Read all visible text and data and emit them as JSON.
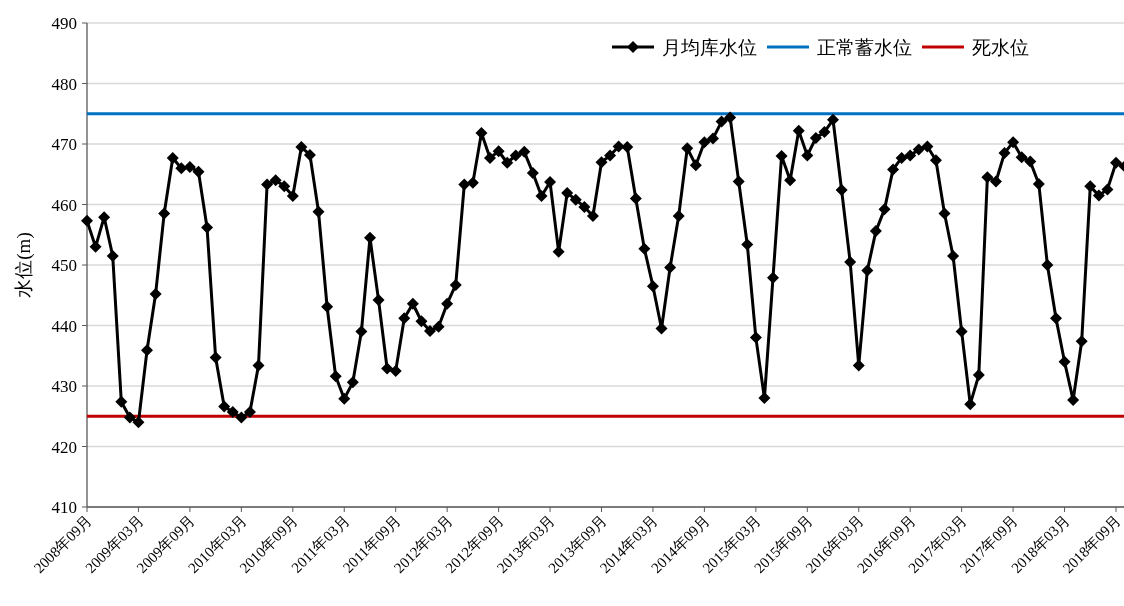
{
  "chart_data": {
    "type": "line",
    "ylabel": "水位(m)",
    "categories": [
      "2008年09月",
      null,
      null,
      null,
      null,
      null,
      "2009年03月",
      null,
      null,
      null,
      null,
      null,
      "2009年09月",
      null,
      null,
      null,
      null,
      null,
      "2010年03月",
      null,
      null,
      null,
      null,
      null,
      "2010年09月",
      null,
      null,
      null,
      null,
      null,
      "2011年03月",
      null,
      null,
      null,
      null,
      null,
      "2011年09月",
      null,
      null,
      null,
      null,
      null,
      "2012年03月",
      null,
      null,
      null,
      null,
      null,
      "2012年09月",
      null,
      null,
      null,
      null,
      null,
      "2013年03月",
      null,
      null,
      null,
      null,
      null,
      "2013年09月",
      null,
      null,
      null,
      null,
      null,
      "2014年03月",
      null,
      null,
      null,
      null,
      null,
      "2014年09月",
      null,
      null,
      null,
      null,
      null,
      "2015年03月",
      null,
      null,
      null,
      null,
      null,
      "2015年09月",
      null,
      null,
      null,
      null,
      null,
      "2016年03月",
      null,
      null,
      null,
      null,
      null,
      "2016年09月",
      null,
      null,
      null,
      null,
      null,
      "2017年03月",
      null,
      null,
      null,
      null,
      null,
      "2017年09月",
      null,
      null,
      null,
      null,
      null,
      "2018年03月",
      null,
      null,
      null,
      null,
      null,
      "2018年09月",
      null
    ],
    "series": [
      {
        "name": "月均库水位",
        "color": "#000000",
        "marker": "diamond",
        "line_style": "solid",
        "values": [
          457.3,
          453.0,
          457.9,
          451.5,
          427.4,
          424.8,
          424.0,
          435.9,
          445.2,
          458.5,
          467.7,
          466.0,
          466.2,
          465.4,
          456.2,
          434.7,
          426.6,
          425.7,
          424.8,
          425.7,
          433.4,
          463.3,
          464.0,
          463.0,
          461.4,
          469.5,
          468.2,
          458.8,
          443.1,
          431.6,
          427.9,
          430.6,
          439.0,
          454.5,
          444.2,
          432.9,
          432.5,
          441.2,
          443.6,
          440.7,
          439.1,
          439.8,
          443.6,
          446.7,
          463.3,
          463.6,
          471.8,
          467.7,
          468.8,
          466.9,
          468.1,
          468.7,
          465.2,
          461.4,
          463.7,
          452.2,
          461.9,
          460.8,
          459.6,
          458.1,
          467.0,
          468.1,
          469.6,
          469.5,
          461.0,
          452.7,
          446.5,
          439.5,
          449.6,
          458.1,
          469.3,
          466.5,
          470.3,
          470.9,
          473.7,
          474.4,
          463.8,
          453.4,
          438.0,
          428.0,
          447.9,
          468.0,
          464.0,
          472.2,
          468.1,
          471.0,
          472.0,
          474.0,
          462.4,
          450.5,
          433.4,
          449.1,
          455.6,
          459.2,
          465.8,
          467.7,
          468.1,
          469.1,
          469.6,
          467.3,
          458.5,
          451.5,
          439.0,
          427.0,
          431.8,
          464.5,
          463.8,
          468.5,
          470.3,
          467.8,
          467.1,
          463.4,
          450.0,
          441.2,
          434.0,
          427.7,
          437.4,
          463.0,
          461.5,
          462.5,
          466.9,
          466.3
        ]
      }
    ],
    "ref_lines": [
      {
        "axis": "y",
        "value": 475,
        "label": "正常蓄水位",
        "color": "#0070c0",
        "line_style": "solid"
      },
      {
        "axis": "y",
        "value": 425,
        "label": "死水位",
        "color": "#c00000",
        "line_style": "solid"
      }
    ],
    "ylim": [
      410,
      490
    ],
    "yticks": [
      410,
      420,
      430,
      440,
      450,
      460,
      470,
      480,
      490
    ],
    "grid": "y",
    "legend": "top right"
  }
}
